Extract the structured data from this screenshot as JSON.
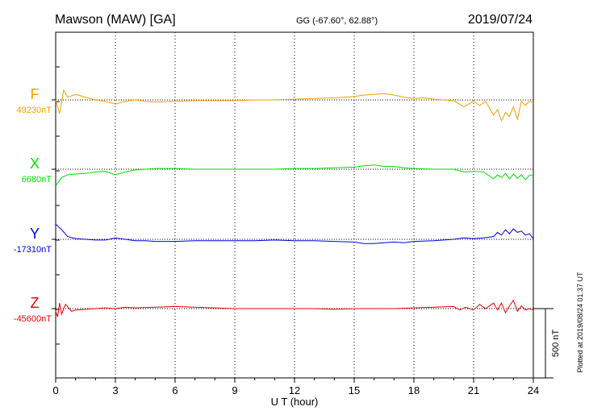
{
  "header": {
    "station": "Mawson (MAW)  [GA]",
    "coords": "GG (-67.60°,  62.88°)",
    "date": "2019/07/24"
  },
  "side_note": "Plotted at 2019/08/24 01:37 UT",
  "chart_data": {
    "type": "line",
    "xlabel": "U T (hour)",
    "xlim": [
      0,
      24
    ],
    "xticks": [
      "0",
      "3",
      "6",
      "9",
      "12",
      "15",
      "18",
      "21",
      "24"
    ],
    "grid": "vertical dotted lines every 3 hours, horizontal dotted baseline per series",
    "scale_bar": {
      "label": "500 nT",
      "value_nT": 500
    },
    "series": [
      {
        "name": "F",
        "baseline_label": "49230nT",
        "baseline_nT": 49230,
        "color": "#f0a000",
        "x": [
          0,
          0.2,
          0.4,
          0.6,
          1,
          1.5,
          2,
          2.5,
          3,
          3.5,
          4,
          4.5,
          5,
          6,
          7,
          8,
          9,
          10,
          11,
          12,
          13,
          14,
          15,
          15.5,
          16,
          16.5,
          17,
          17.5,
          18,
          18.5,
          19,
          19.5,
          20,
          20.5,
          21,
          21.3,
          21.6,
          22,
          22.2,
          22.4,
          22.6,
          22.8,
          23,
          23.2,
          23.4,
          23.6,
          23.8,
          24
        ],
        "values": [
          49230,
          49130,
          49300,
          49250,
          49270,
          49250,
          49230,
          49220,
          49200,
          49220,
          49230,
          49220,
          49215,
          49220,
          49225,
          49225,
          49225,
          49230,
          49230,
          49235,
          49240,
          49245,
          49255,
          49265,
          49270,
          49275,
          49265,
          49250,
          49240,
          49245,
          49235,
          49230,
          49225,
          49180,
          49220,
          49190,
          49220,
          49120,
          49160,
          49080,
          49140,
          49110,
          49180,
          49090,
          49220,
          49190,
          49220,
          49210
        ]
      },
      {
        "name": "X",
        "baseline_label": "6680nT",
        "baseline_nT": 6680,
        "color": "#00dd00",
        "x": [
          0,
          0.3,
          0.6,
          1,
          1.5,
          2,
          2.5,
          3,
          3.5,
          4,
          4.5,
          5,
          6,
          7,
          8,
          9,
          10,
          11,
          12,
          13,
          14,
          15,
          15.5,
          16,
          16.5,
          17,
          17.5,
          18,
          19,
          20,
          20.5,
          21,
          21.5,
          22,
          22.2,
          22.4,
          22.6,
          22.8,
          23,
          23.2,
          23.4,
          23.6,
          23.8,
          24
        ],
        "values": [
          6560,
          6620,
          6640,
          6645,
          6650,
          6660,
          6665,
          6640,
          6660,
          6675,
          6680,
          6685,
          6685,
          6680,
          6680,
          6680,
          6680,
          6680,
          6685,
          6685,
          6690,
          6695,
          6705,
          6710,
          6700,
          6700,
          6690,
          6685,
          6680,
          6680,
          6660,
          6665,
          6660,
          6610,
          6640,
          6620,
          6650,
          6610,
          6645,
          6615,
          6640,
          6605,
          6635,
          6640
        ]
      },
      {
        "name": "Y",
        "baseline_label": "-17310nT",
        "baseline_nT": -17310,
        "color": "#0000ee",
        "x": [
          0,
          0.3,
          0.6,
          1,
          1.5,
          2,
          2.5,
          3,
          3.5,
          4,
          4.5,
          5,
          6,
          7,
          8,
          9,
          10,
          11,
          12,
          13,
          14,
          15,
          15.5,
          16,
          16.5,
          17,
          17.5,
          18,
          19,
          20,
          20.5,
          21,
          21.5,
          22,
          22.2,
          22.4,
          22.6,
          22.8,
          23,
          23.2,
          23.4,
          23.6,
          23.8,
          24
        ],
        "values": [
          -17200,
          -17240,
          -17290,
          -17305,
          -17310,
          -17315,
          -17315,
          -17300,
          -17310,
          -17320,
          -17320,
          -17325,
          -17325,
          -17320,
          -17320,
          -17320,
          -17320,
          -17315,
          -17320,
          -17320,
          -17325,
          -17330,
          -17340,
          -17340,
          -17335,
          -17330,
          -17335,
          -17325,
          -17320,
          -17310,
          -17300,
          -17305,
          -17300,
          -17290,
          -17260,
          -17280,
          -17240,
          -17270,
          -17235,
          -17260,
          -17250,
          -17280,
          -17270,
          -17305
        ]
      },
      {
        "name": "Z",
        "baseline_label": "-45600nT",
        "baseline_nT": -45600,
        "color": "#ee0000",
        "x": [
          0,
          0.1,
          0.2,
          0.3,
          0.4,
          0.5,
          0.8,
          1,
          1.5,
          2,
          2.5,
          3,
          3.5,
          4,
          5,
          6,
          7,
          8,
          9,
          10,
          11,
          12,
          13,
          14,
          15,
          16,
          17,
          18,
          19,
          20,
          20.3,
          20.6,
          21,
          21.3,
          21.6,
          22,
          22.2,
          22.4,
          22.6,
          22.8,
          23,
          23.2,
          23.4,
          23.6,
          23.8,
          24
        ],
        "values": [
          -45620,
          -45660,
          -45560,
          -45640,
          -45600,
          -45570,
          -45620,
          -45610,
          -45605,
          -45600,
          -45595,
          -45600,
          -45590,
          -45595,
          -45590,
          -45585,
          -45590,
          -45595,
          -45600,
          -45600,
          -45600,
          -45600,
          -45600,
          -45605,
          -45600,
          -45600,
          -45600,
          -45595,
          -45590,
          -45585,
          -45610,
          -45590,
          -45610,
          -45570,
          -45600,
          -45560,
          -45610,
          -45560,
          -45630,
          -45580,
          -45540,
          -45620,
          -45580,
          -45610,
          -45600,
          -45610
        ]
      }
    ]
  }
}
